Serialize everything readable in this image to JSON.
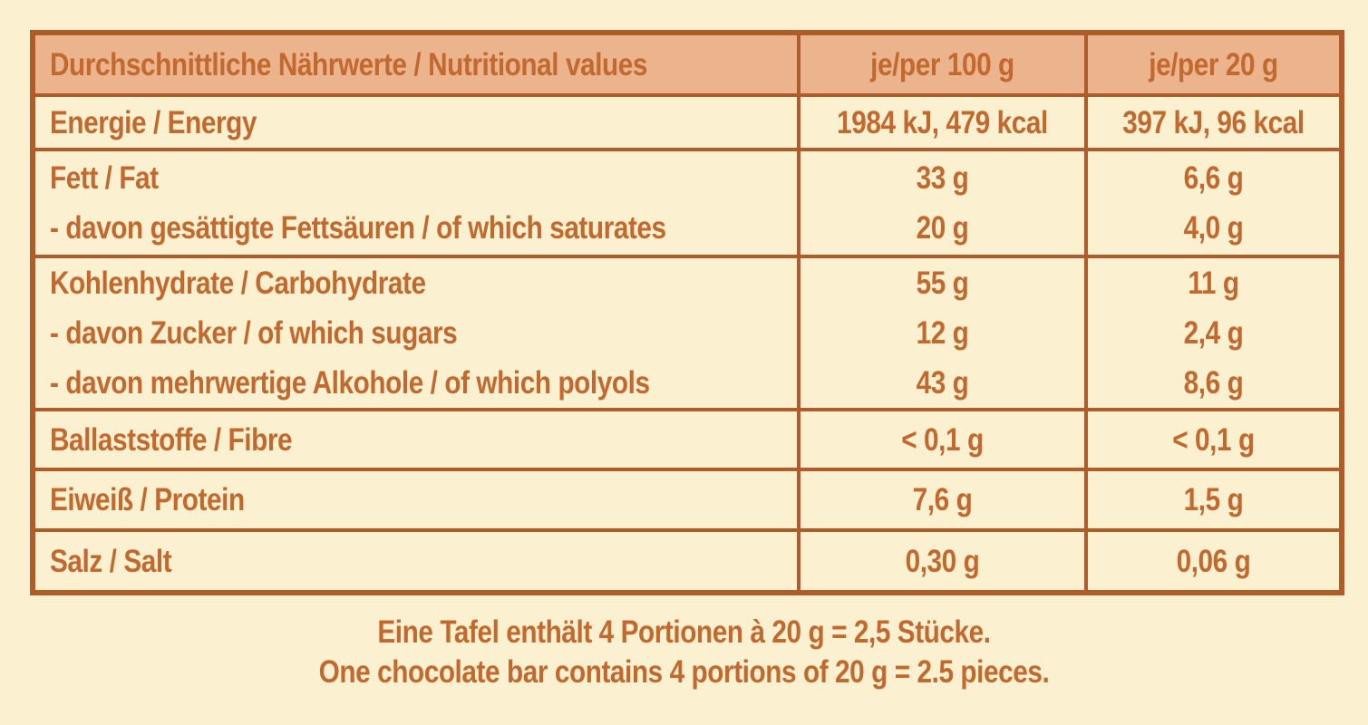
{
  "colors": {
    "page_background": "#fbf1d0",
    "header_background": "#ecb48d",
    "border": "#ae5d2a",
    "text": "#c1692f"
  },
  "table": {
    "header_label": "Durchschnittliche Nährwerte / Nutritional values",
    "col_per_100g": "je/per 100 g",
    "col_per_20g": "je/per 20 g",
    "rows": [
      {
        "name": "energy",
        "lines": [
          {
            "label": "Energie / Energy",
            "per_100g": "1984 kJ, 479 kcal",
            "per_20g": "397 kJ, 96 kcal"
          }
        ]
      },
      {
        "name": "fat",
        "lines": [
          {
            "label": "Fett / Fat",
            "per_100g": "33 g",
            "per_20g": "6,6 g"
          },
          {
            "label": "- davon gesättigte Fettsäuren / of which saturates",
            "per_100g": "20 g",
            "per_20g": "4,0 g"
          }
        ]
      },
      {
        "name": "carbohydrate",
        "lines": [
          {
            "label": "Kohlenhydrate / Carbohydrate",
            "per_100g": "55 g",
            "per_20g": "11 g"
          },
          {
            "label": "- davon Zucker / of which sugars",
            "per_100g": "12 g",
            "per_20g": "2,4 g"
          },
          {
            "label": "- davon mehrwertige Alkohole / of which polyols",
            "per_100g": "43 g",
            "per_20g": "8,6 g"
          }
        ]
      },
      {
        "name": "fibre",
        "lines": [
          {
            "label": "Ballaststoffe / Fibre",
            "per_100g": "< 0,1 g",
            "per_20g": "< 0,1 g"
          }
        ]
      },
      {
        "name": "protein",
        "lines": [
          {
            "label": "Eiweiß / Protein",
            "per_100g": "7,6 g",
            "per_20g": "1,5 g"
          }
        ]
      },
      {
        "name": "salt",
        "lines": [
          {
            "label": "Salz / Salt",
            "per_100g": "0,30 g",
            "per_20g": "0,06 g"
          }
        ]
      }
    ]
  },
  "footer": {
    "line_de": "Eine Tafel enthält 4 Portionen à 20 g = 2,5 Stücke.",
    "line_en": "One chocolate bar contains 4 portions of 20 g = 2.5 pieces."
  }
}
